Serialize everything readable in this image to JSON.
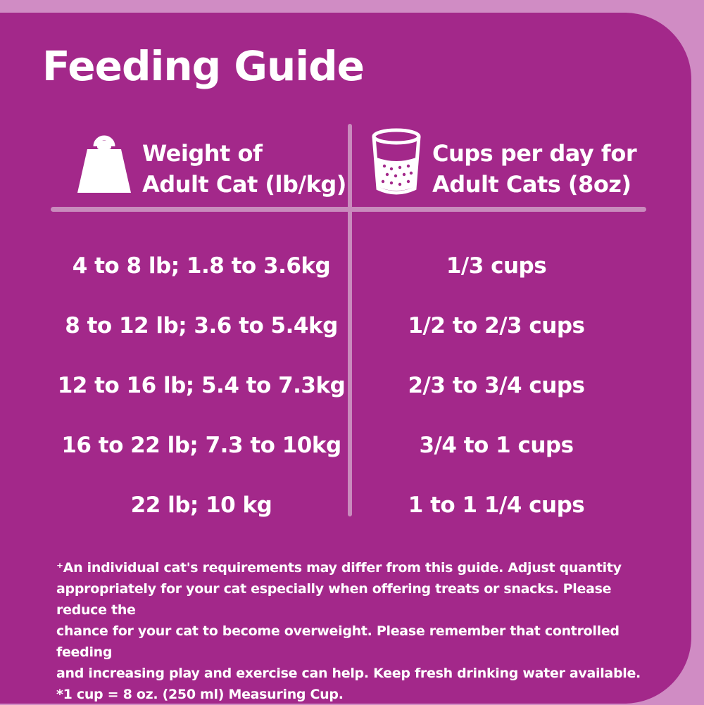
{
  "title": "Feeding Guide",
  "colors": {
    "panel": "#a3288a",
    "frame": "#d08cc4",
    "divider": "#c98bbd",
    "text": "#ffffff"
  },
  "icons": {
    "left_header": "weight-icon",
    "right_header": "measuring-cup-icon"
  },
  "table": {
    "headers": {
      "weight_line1": "Weight of",
      "weight_line2": "Adult Cat (lb/kg)",
      "cups_line1": "Cups per day for",
      "cups_line2": "Adult Cats (8oz)"
    },
    "rows": [
      {
        "weight": "4 to 8 lb; 1.8 to 3.6kg",
        "cups": "1/3 cups"
      },
      {
        "weight": "8 to 12 lb; 3.6 to 5.4kg",
        "cups": "1/2 to 2/3 cups"
      },
      {
        "weight": "12 to 16 lb; 5.4 to 7.3kg",
        "cups": "2/3 to 3/4 cups"
      },
      {
        "weight": "16 to 22 lb; 7.3 to 10kg",
        "cups": "3/4 to 1 cups"
      },
      {
        "weight": "22 lb; 10 kg",
        "cups": "1 to 1 1/4 cups"
      }
    ]
  },
  "footnote": {
    "lines": [
      "⁺An individual cat's requirements may differ from this guide. Adjust quantity",
      "appropriately for your cat especially when offering treats or snacks. Please reduce the",
      "chance for your cat to become overweight. Please remember that controlled feeding",
      "and increasing play and exercise can help. Keep fresh drinking water available.",
      "*1 cup = 8 oz. (250 ml) Measuring Cup."
    ]
  }
}
